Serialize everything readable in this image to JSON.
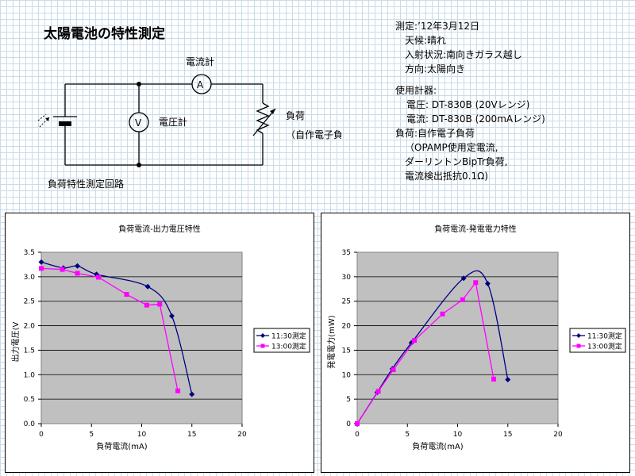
{
  "page_title": "太陽電池の特性測定",
  "circuit": {
    "ammeter_label": "電流計",
    "ammeter_symbol": "A",
    "voltmeter_label": "電圧計",
    "voltmeter_symbol": "V",
    "load_label": "負荷",
    "load_sub": "（自作電子負荷）",
    "caption": "負荷特性測定回路"
  },
  "notes": {
    "measure": "測定:’12年3月12日",
    "weather": "天候:晴れ",
    "incidence": "入射状況:南向きガラス越し",
    "direction": "方向:太陽向き",
    "instruments_heading": "使用計器:",
    "voltage_meter": "電圧:  DT-830B (20Vレンジ)",
    "current_meter": "電流:  DT-830B (200mAレンジ)",
    "load_heading": "負荷:自作電子負荷",
    "load_detail1": "（OPAMP使用定電流,",
    "load_detail2": "ダーリントンBipTr負荷,",
    "load_detail3": "電流検出抵抗0.1Ω)"
  },
  "colors": {
    "series1": "#000080",
    "series2": "#ff00ff",
    "plot_bg": "#c0c0c0"
  },
  "chart_data": [
    {
      "type": "line",
      "title": "負荷電流-出力電圧特性",
      "xlabel": "負荷電流(mA)",
      "ylabel": "出力電圧(V",
      "xlim": [
        0,
        20
      ],
      "ylim": [
        0,
        3.5
      ],
      "xticks": [
        "0",
        "5",
        "10",
        "15",
        "20"
      ],
      "yticks": [
        "0.0",
        "0.5",
        "1.0",
        "1.5",
        "2.0",
        "2.5",
        "3.0",
        "3.5"
      ],
      "grid": "horizontal",
      "legend": "right",
      "series": [
        {
          "name": "11:30測定",
          "marker": "diamond",
          "x": [
            0,
            2.2,
            3.6,
            5.5,
            10.6,
            13,
            15
          ],
          "y": [
            3.3,
            3.18,
            3.22,
            3.05,
            2.8,
            2.2,
            0.6
          ]
        },
        {
          "name": "13:00測定",
          "marker": "square",
          "x": [
            0,
            2.1,
            3.6,
            5.7,
            8.5,
            10.5,
            11.8,
            13.6
          ],
          "y": [
            3.17,
            3.15,
            3.07,
            2.99,
            2.64,
            2.42,
            2.44,
            0.67
          ]
        }
      ]
    },
    {
      "type": "line",
      "title": "負荷電流-発電電力特性",
      "xlabel": "負荷電流(mA)",
      "ylabel": "発電電力(mW)",
      "xlim": [
        0,
        20
      ],
      "ylim": [
        0,
        35
      ],
      "xticks": [
        "0",
        "5",
        "10",
        "15",
        "20"
      ],
      "yticks": [
        "0",
        "5",
        "10",
        "15",
        "20",
        "25",
        "30",
        "35"
      ],
      "grid": "horizontal",
      "legend": "right",
      "series": [
        {
          "name": "11:30測定",
          "marker": "diamond",
          "x": [
            0,
            2.0,
            3.5,
            5.4,
            10.6,
            13.0,
            15.0
          ],
          "y": [
            0,
            6.4,
            11.2,
            16.5,
            29.7,
            28.6,
            9.0
          ]
        },
        {
          "name": "13:00測定",
          "marker": "square",
          "x": [
            0,
            2.1,
            3.6,
            5.7,
            8.5,
            10.5,
            11.8,
            13.6
          ],
          "y": [
            0,
            6.6,
            11.0,
            17.0,
            22.4,
            25.3,
            28.8,
            9.1
          ]
        }
      ]
    }
  ]
}
